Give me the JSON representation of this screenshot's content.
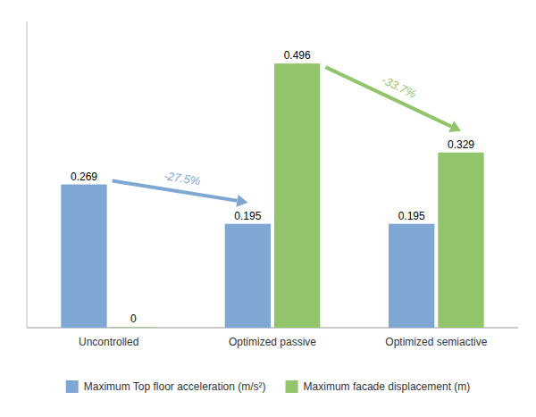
{
  "chart_data": {
    "type": "bar",
    "categories": [
      "Uncontrolled",
      "Optimized passive",
      "Optimized semiactive"
    ],
    "series": [
      {
        "name": "Maximum Top floor acceleration (m/s²)",
        "color": "#7ea7d3",
        "values": [
          0.269,
          0.195,
          0.195
        ]
      },
      {
        "name": "Maximum facade displacement (m)",
        "color": "#92c46c",
        "values": [
          0.001,
          0.496,
          0.329
        ],
        "value_labels": [
          "0",
          "0.496",
          "0.329"
        ]
      }
    ],
    "ylim": [
      0,
      0.575
    ],
    "tick_labels": "x",
    "data_labels": true,
    "legend": "bottom",
    "annotations": [
      "-27.5%",
      "-33.7%"
    ]
  }
}
